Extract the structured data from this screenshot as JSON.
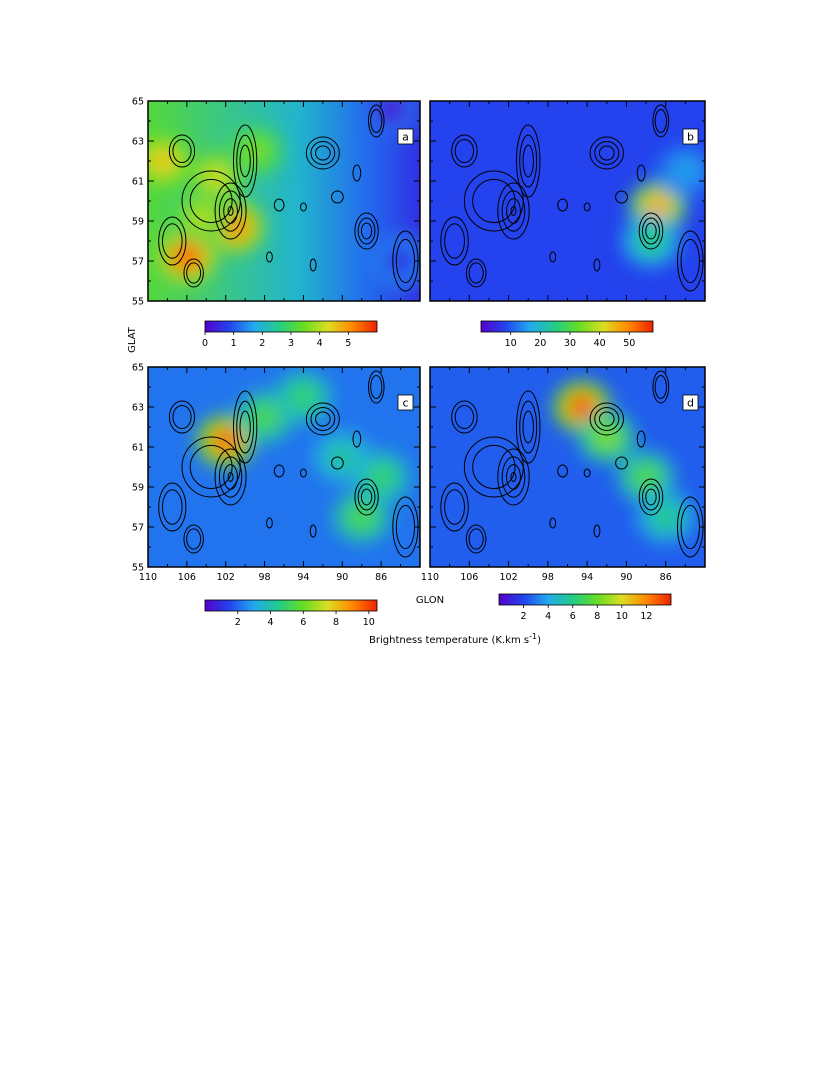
{
  "chart_data": {
    "type": "heatmap",
    "layout": "2x2 panels",
    "x_axis": {
      "label": "GLON",
      "range": [
        110,
        82
      ],
      "reversed": true,
      "ticks": [
        "110",
        "106",
        "102",
        "98",
        "94",
        "90",
        "86"
      ]
    },
    "y_axis": {
      "label": "GLAT",
      "range": [
        55,
        65
      ],
      "ticks": [
        "55",
        "57",
        "59",
        "61",
        "63",
        "65"
      ]
    },
    "colorbar_label": "Brightness temperature (K.km s",
    "colorbar_label_exp": "-1",
    "colorbar_label_close": ")",
    "contour_color": "#000000",
    "colormap": [
      "#5500cc",
      "#2244ee",
      "#22aaee",
      "#22cc88",
      "#66dd22",
      "#dddd22",
      "#ff8800",
      "#ee2200"
    ],
    "panels": [
      {
        "id": "a",
        "colorbar": {
          "min": 0,
          "max": 6,
          "ticks": [
            "0",
            "1",
            "2",
            "3",
            "4",
            "5"
          ]
        },
        "background": 2.2,
        "gradient_note": "lower toward east (right)",
        "hotspots": [
          {
            "glon": 103.0,
            "glat": 61.2,
            "value": 4.2
          },
          {
            "glon": 101.0,
            "glat": 58.7,
            "value": 5.2
          },
          {
            "glon": 106.0,
            "glat": 57.2,
            "value": 5.6
          },
          {
            "glon": 108.5,
            "glat": 62.0,
            "value": 4.6
          },
          {
            "glon": 104.5,
            "glat": 59.2,
            "value": 4.0
          },
          {
            "glon": 99.0,
            "glat": 62.5,
            "value": 3.6
          },
          {
            "glon": 85.0,
            "glat": 64.6,
            "value": 0.2
          },
          {
            "glon": 84.0,
            "glat": 57.0,
            "value": 0.6
          }
        ]
      },
      {
        "id": "b",
        "colorbar": {
          "min": 0,
          "max": 58,
          "ticks": [
            "10",
            "20",
            "30",
            "40",
            "50"
          ]
        },
        "background": 8,
        "hotspots": [
          {
            "glon": 86.8,
            "glat": 59.7,
            "value": 48
          },
          {
            "glon": 87.5,
            "glat": 58.0,
            "value": 26
          },
          {
            "glon": 84.0,
            "glat": 61.5,
            "value": 16
          }
        ]
      },
      {
        "id": "c",
        "colorbar": {
          "min": 0,
          "max": 10.5,
          "ticks": [
            "2",
            "4",
            "6",
            "8",
            "10"
          ]
        },
        "background": 2.2,
        "hotspots": [
          {
            "glon": 102.0,
            "glat": 61.3,
            "value": 9.8
          },
          {
            "glon": 98.0,
            "glat": 62.5,
            "value": 5.5
          },
          {
            "glon": 94.0,
            "glat": 63.5,
            "value": 5.0
          },
          {
            "glon": 88.0,
            "glat": 57.5,
            "value": 5.5
          },
          {
            "glon": 86.0,
            "glat": 59.5,
            "value": 5.0
          },
          {
            "glon": 90.0,
            "glat": 60.5,
            "value": 4.2
          }
        ]
      },
      {
        "id": "d",
        "colorbar": {
          "min": 0,
          "max": 14,
          "ticks": [
            "2",
            "4",
            "6",
            "8",
            "10",
            "12"
          ]
        },
        "background": 2.5,
        "hotspots": [
          {
            "glon": 94.5,
            "glat": 63.0,
            "value": 13.5
          },
          {
            "glon": 92.0,
            "glat": 61.5,
            "value": 8.5
          },
          {
            "glon": 88.0,
            "glat": 59.5,
            "value": 7.5
          },
          {
            "glon": 86.0,
            "glat": 57.5,
            "value": 6.0
          }
        ]
      }
    ],
    "contours": [
      {
        "glon": 100.0,
        "glat": 62.0,
        "rx": 1.2,
        "ry": 1.8,
        "levels": 3
      },
      {
        "glon": 101.5,
        "glat": 59.5,
        "rx": 1.6,
        "ry": 1.4,
        "levels": 4
      },
      {
        "glon": 103.5,
        "glat": 60.0,
        "rx": 3.0,
        "ry": 1.5,
        "levels": 2
      },
      {
        "glon": 106.5,
        "glat": 62.5,
        "rx": 1.3,
        "ry": 0.8,
        "levels": 2
      },
      {
        "glon": 107.5,
        "glat": 58.0,
        "rx": 1.4,
        "ry": 1.2,
        "levels": 2
      },
      {
        "glon": 105.3,
        "glat": 56.4,
        "rx": 1.0,
        "ry": 0.7,
        "levels": 2
      },
      {
        "glon": 92.0,
        "glat": 62.4,
        "rx": 1.7,
        "ry": 0.8,
        "levels": 3
      },
      {
        "glon": 87.5,
        "glat": 58.5,
        "rx": 1.2,
        "ry": 0.9,
        "levels": 3
      },
      {
        "glon": 86.5,
        "glat": 64.0,
        "rx": 0.8,
        "ry": 0.8,
        "levels": 2
      },
      {
        "glon": 90.5,
        "glat": 60.2,
        "rx": 0.6,
        "ry": 0.3,
        "levels": 1
      },
      {
        "glon": 88.5,
        "glat": 61.4,
        "rx": 0.4,
        "ry": 0.4,
        "levels": 1
      },
      {
        "glon": 96.5,
        "glat": 59.8,
        "rx": 0.5,
        "ry": 0.3,
        "levels": 1
      },
      {
        "glon": 94.0,
        "glat": 59.7,
        "rx": 0.3,
        "ry": 0.2,
        "levels": 1
      },
      {
        "glon": 97.5,
        "glat": 57.2,
        "rx": 0.3,
        "ry": 0.25,
        "levels": 1
      },
      {
        "glon": 93.0,
        "glat": 56.8,
        "rx": 0.3,
        "ry": 0.3,
        "levels": 1
      },
      {
        "glon": 83.5,
        "glat": 57.0,
        "rx": 1.3,
        "ry": 1.5,
        "levels": 2
      }
    ]
  }
}
